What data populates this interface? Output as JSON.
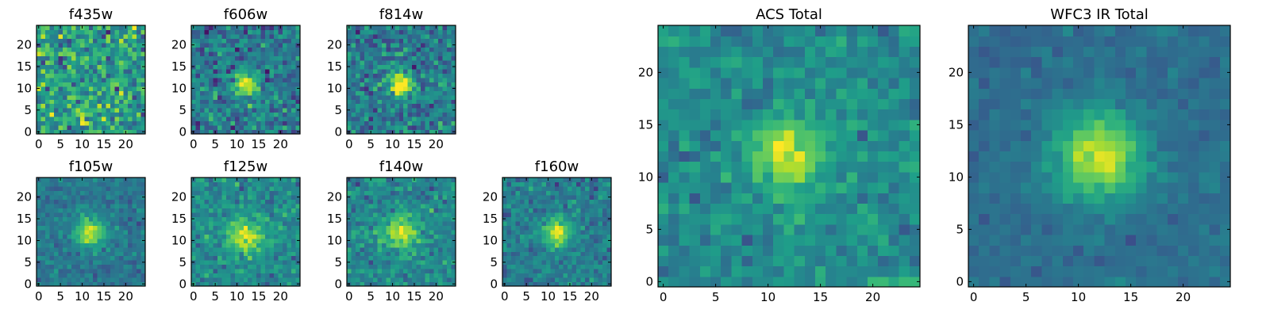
{
  "figure": {
    "colormap": "viridis",
    "colormap_stops": [
      "#440154",
      "#482878",
      "#3e4989",
      "#31688e",
      "#26828e",
      "#1f9e89",
      "#35b779",
      "#6ece58",
      "#b5de2b",
      "#fde725"
    ],
    "frame_color": "#000000"
  },
  "chart_data": [
    {
      "type": "heatmap",
      "title": "f435w",
      "shape": [
        25,
        25
      ],
      "source_center": [
        10,
        4
      ],
      "source_strength": 0.15,
      "source_sigma": 1.6,
      "noise": 0.26,
      "base": 0.56,
      "seed": 11,
      "xticks": [
        "0",
        "5",
        "10",
        "15",
        "20"
      ],
      "yticks": [
        "0",
        "5",
        "10",
        "15",
        "20"
      ]
    },
    {
      "type": "heatmap",
      "title": "f606w",
      "shape": [
        25,
        25
      ],
      "source_center": [
        12,
        11
      ],
      "source_strength": 0.55,
      "source_sigma": 2.0,
      "noise": 0.2,
      "base": 0.4,
      "seed": 23,
      "xticks": [
        "0",
        "5",
        "10",
        "15",
        "20"
      ],
      "yticks": [
        "0",
        "5",
        "10",
        "15",
        "20"
      ]
    },
    {
      "type": "heatmap",
      "title": "f814w",
      "shape": [
        25,
        25
      ],
      "source_center": [
        12,
        11
      ],
      "source_strength": 0.6,
      "source_sigma": 1.9,
      "noise": 0.2,
      "base": 0.42,
      "seed": 37,
      "xticks": [
        "0",
        "5",
        "10",
        "15",
        "20"
      ],
      "yticks": [
        "0",
        "5",
        "10",
        "15",
        "20"
      ]
    },
    {
      "type": "heatmap",
      "title": "f105w",
      "shape": [
        25,
        25
      ],
      "source_center": [
        12,
        12
      ],
      "source_strength": 0.55,
      "source_sigma": 2.3,
      "noise": 0.11,
      "base": 0.4,
      "seed": 41,
      "xticks": [
        "0",
        "5",
        "10",
        "15",
        "20"
      ],
      "yticks": [
        "0",
        "5",
        "10",
        "15",
        "20"
      ]
    },
    {
      "type": "heatmap",
      "title": "f125w",
      "shape": [
        25,
        25
      ],
      "source_center": [
        12,
        11
      ],
      "source_strength": 0.45,
      "source_sigma": 2.8,
      "noise": 0.15,
      "base": 0.48,
      "seed": 53,
      "xticks": [
        "0",
        "5",
        "10",
        "15",
        "20"
      ],
      "yticks": [
        "0",
        "5",
        "10",
        "15",
        "20"
      ]
    },
    {
      "type": "heatmap",
      "title": "f140w",
      "shape": [
        25,
        25
      ],
      "source_center": [
        12,
        12
      ],
      "source_strength": 0.45,
      "source_sigma": 2.6,
      "noise": 0.14,
      "base": 0.46,
      "seed": 67,
      "xticks": [
        "0",
        "5",
        "10",
        "15",
        "20"
      ],
      "yticks": [
        "0",
        "5",
        "10",
        "15",
        "20"
      ]
    },
    {
      "type": "heatmap",
      "title": "f160w",
      "shape": [
        25,
        25
      ],
      "source_center": [
        12,
        12
      ],
      "source_strength": 0.55,
      "source_sigma": 2.3,
      "noise": 0.14,
      "base": 0.42,
      "seed": 71,
      "xticks": [
        "0",
        "5",
        "10",
        "15",
        "20"
      ],
      "yticks": [
        "0",
        "5",
        "10",
        "15",
        "20"
      ]
    },
    {
      "type": "heatmap",
      "title": "ACS Total",
      "shape": [
        25,
        25
      ],
      "source_center": [
        12,
        12
      ],
      "source_strength": 0.45,
      "source_sigma": 2.4,
      "noise": 0.13,
      "base": 0.48,
      "seed": 83,
      "xticks": [
        "0",
        "5",
        "10",
        "15",
        "20"
      ],
      "yticks": [
        "0",
        "5",
        "10",
        "15",
        "20"
      ]
    },
    {
      "type": "heatmap",
      "title": "WFC3 IR Total",
      "shape": [
        25,
        25
      ],
      "source_center": [
        12,
        12
      ],
      "source_strength": 0.55,
      "source_sigma": 3.0,
      "noise": 0.07,
      "base": 0.36,
      "seed": 97,
      "xticks": [
        "0",
        "5",
        "10",
        "15",
        "20"
      ],
      "yticks": [
        "0",
        "5",
        "10",
        "15",
        "20"
      ]
    }
  ]
}
